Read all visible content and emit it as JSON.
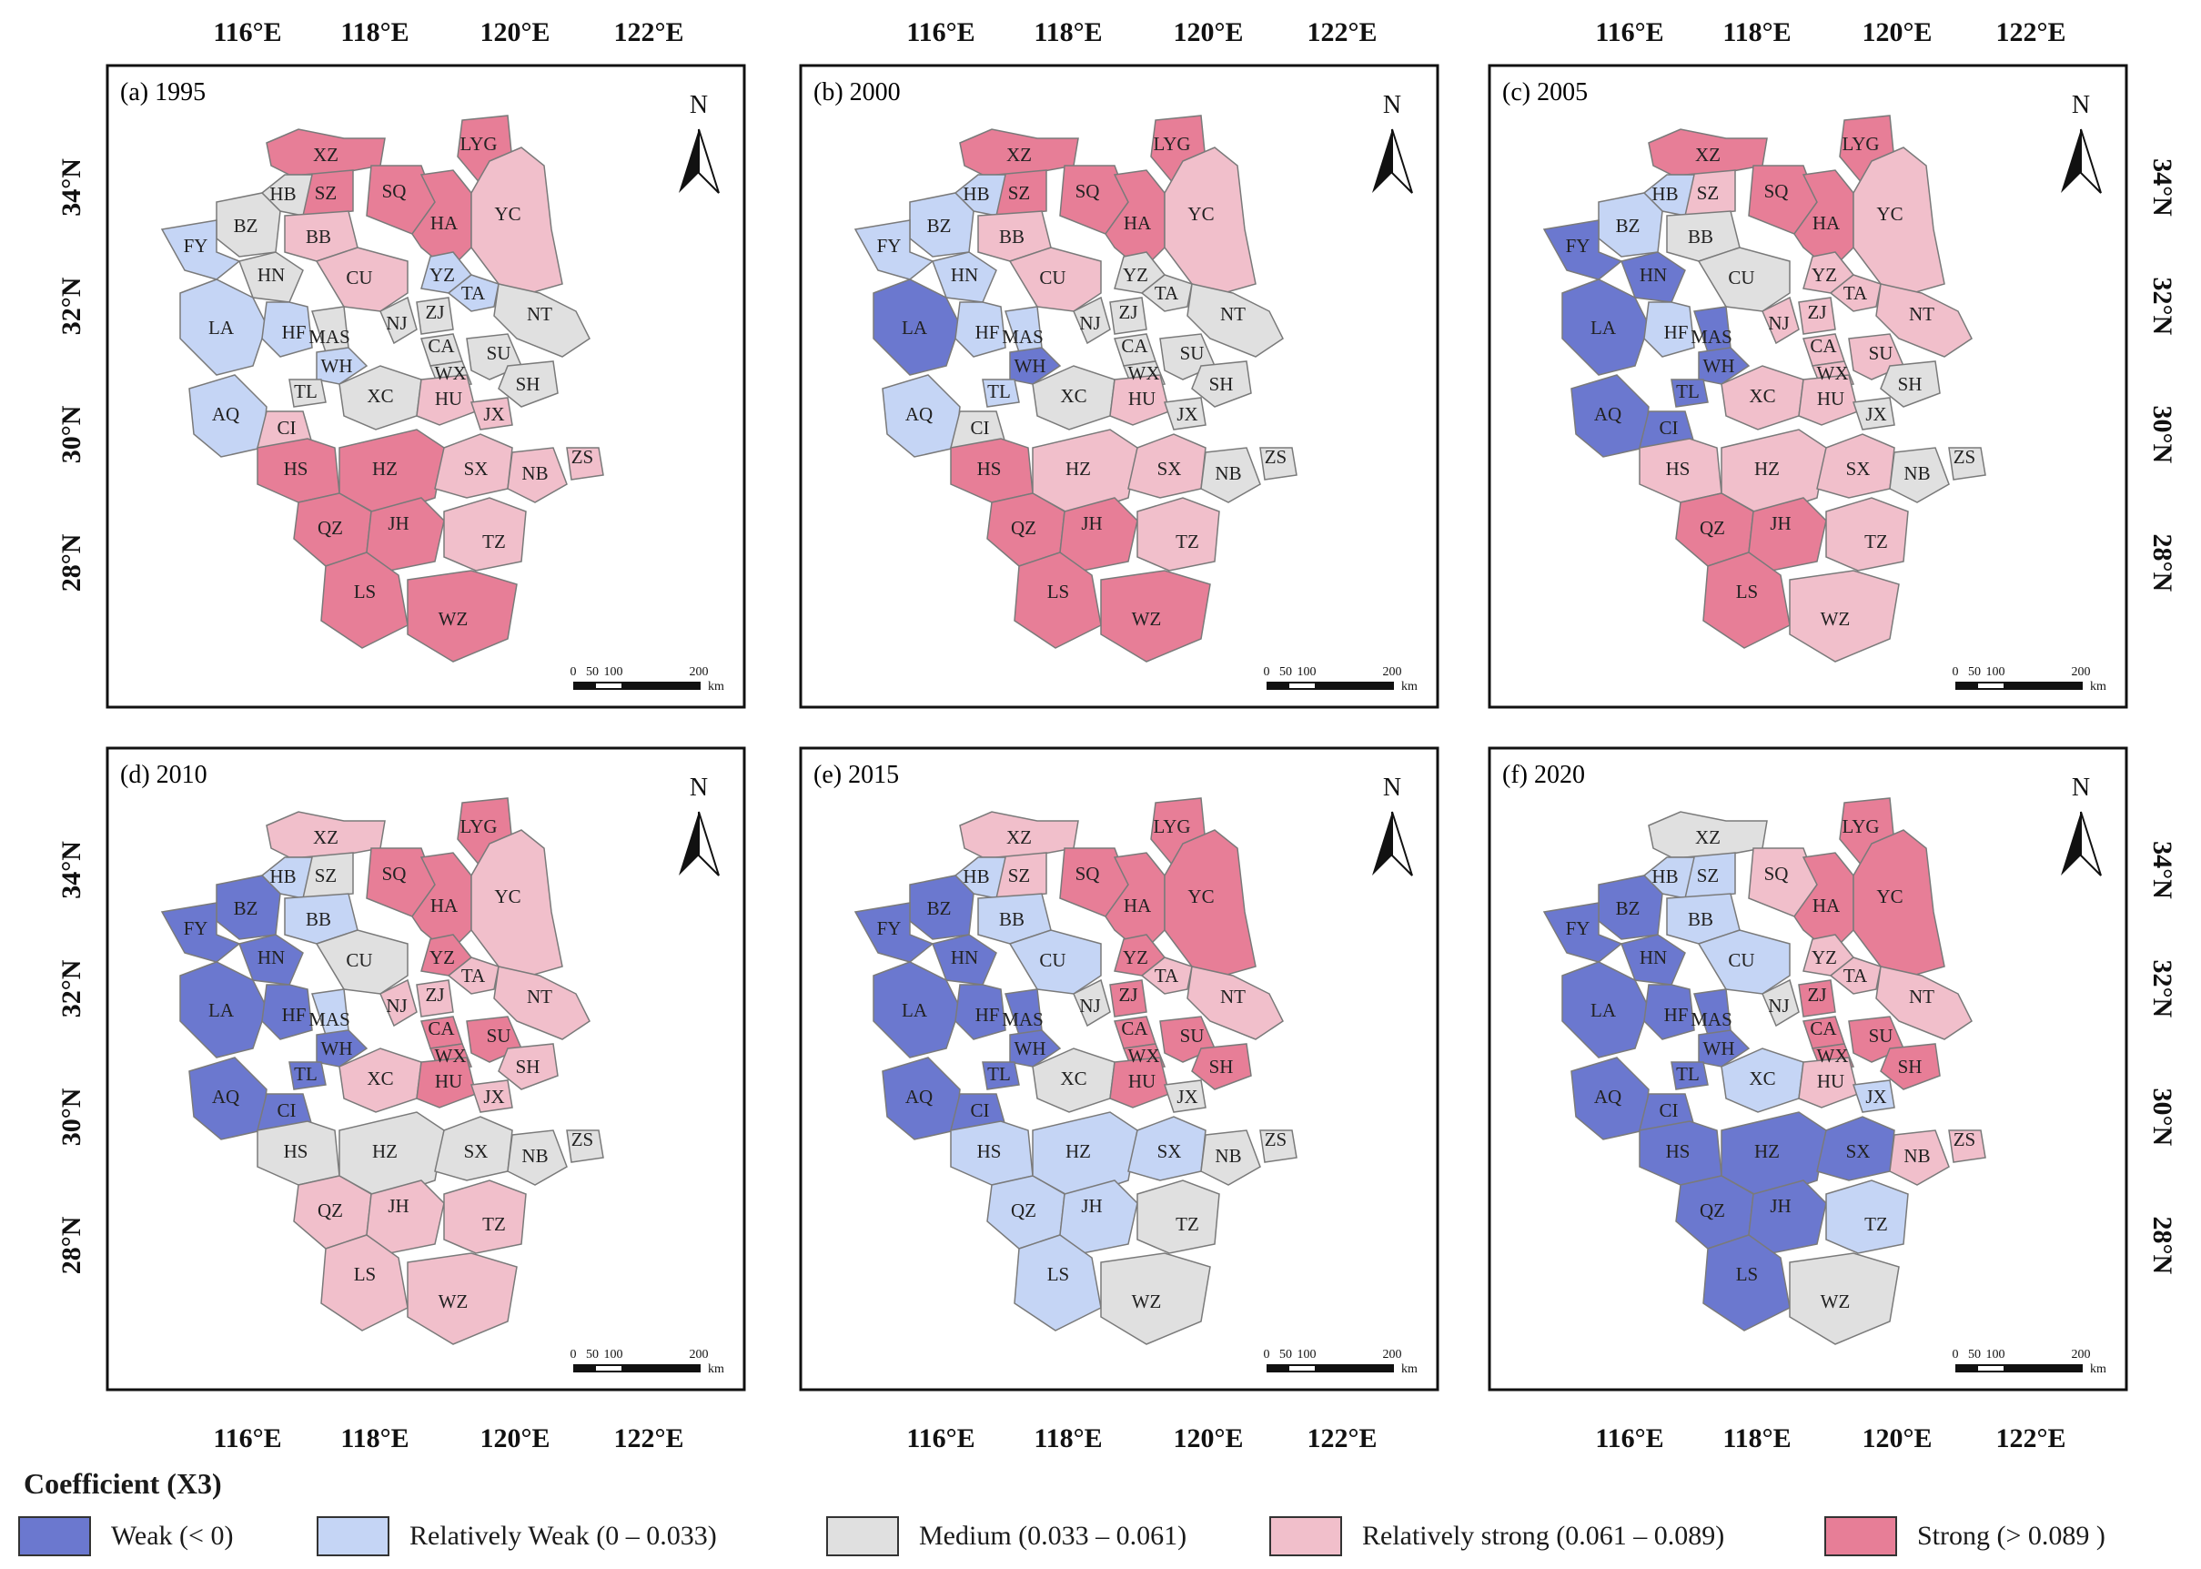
{
  "figure": {
    "legend_title": "Coefficient (X3)",
    "legend": [
      {
        "key": "W",
        "label": "Weak (< 0)",
        "color": "#6b78cf"
      },
      {
        "key": "RW",
        "label": "Relatively Weak (0 – 0.033)",
        "color": "#c5d5f5"
      },
      {
        "key": "M",
        "label": "Medium (0.033 – 0.061)",
        "color": "#e0e0e0"
      },
      {
        "key": "RS",
        "label": "Relatively strong (0.061 – 0.089)",
        "color": "#f1bfcb"
      },
      {
        "key": "S",
        "label": "Strong (> 0.089 )",
        "color": "#e77e97"
      }
    ],
    "lon_labels": [
      "116°E",
      "118°E",
      "120°E",
      "122°E"
    ],
    "lat_labels": [
      "34°N",
      "32°N",
      "30°N",
      "28°N"
    ],
    "scale_labels": [
      "0",
      "50",
      "100",
      "200"
    ],
    "scale_unit": "km",
    "north": "N",
    "regions": [
      "LYG",
      "XZ",
      "SZ",
      "SQ",
      "HB",
      "HA",
      "YC",
      "BZ",
      "BB",
      "FY",
      "CU",
      "YZ",
      "TA",
      "HN",
      "NT",
      "LA",
      "HF",
      "MAS",
      "NJ",
      "ZJ",
      "CA",
      "WX",
      "SU",
      "WH",
      "SH",
      "TL",
      "XC",
      "HU",
      "JX",
      "AQ",
      "CI",
      "HS",
      "HZ",
      "SX",
      "NB",
      "ZS",
      "QZ",
      "JH",
      "TZ",
      "LS",
      "WZ"
    ],
    "panels": [
      {
        "label": "(a) 1995",
        "classes": {
          "LYG": "S",
          "XZ": "S",
          "SZ": "S",
          "SQ": "S",
          "HB": "M",
          "HA": "S",
          "YC": "RS",
          "BZ": "M",
          "BB": "RS",
          "FY": "RW",
          "CU": "RS",
          "YZ": "RW",
          "TA": "RW",
          "HN": "M",
          "NT": "M",
          "LA": "RW",
          "HF": "RW",
          "MAS": "M",
          "NJ": "M",
          "ZJ": "M",
          "CA": "M",
          "WX": "M",
          "SU": "M",
          "WH": "RW",
          "SH": "M",
          "TL": "M",
          "XC": "M",
          "HU": "RS",
          "JX": "RS",
          "AQ": "RW",
          "CI": "RS",
          "HS": "S",
          "HZ": "S",
          "SX": "RS",
          "NB": "RS",
          "ZS": "RS",
          "QZ": "S",
          "JH": "S",
          "TZ": "RS",
          "LS": "S",
          "WZ": "S"
        }
      },
      {
        "label": "(b) 2000",
        "classes": {
          "LYG": "S",
          "XZ": "S",
          "SZ": "S",
          "SQ": "S",
          "HB": "RW",
          "HA": "S",
          "YC": "RS",
          "BZ": "RW",
          "BB": "RS",
          "FY": "RW",
          "CU": "RS",
          "YZ": "M",
          "TA": "M",
          "HN": "RW",
          "NT": "M",
          "LA": "W",
          "HF": "RW",
          "MAS": "RW",
          "NJ": "M",
          "ZJ": "M",
          "CA": "M",
          "WX": "M",
          "SU": "M",
          "WH": "W",
          "SH": "M",
          "TL": "RW",
          "XC": "M",
          "HU": "RS",
          "JX": "M",
          "AQ": "RW",
          "CI": "M",
          "HS": "S",
          "HZ": "RS",
          "SX": "RS",
          "NB": "M",
          "ZS": "M",
          "QZ": "S",
          "JH": "S",
          "TZ": "RS",
          "LS": "S",
          "WZ": "S"
        }
      },
      {
        "label": "(c) 2005",
        "classes": {
          "LYG": "S",
          "XZ": "S",
          "SZ": "RS",
          "SQ": "S",
          "HB": "RW",
          "HA": "S",
          "YC": "RS",
          "BZ": "RW",
          "BB": "M",
          "FY": "W",
          "CU": "M",
          "YZ": "RS",
          "TA": "RS",
          "HN": "W",
          "NT": "RS",
          "LA": "W",
          "HF": "RW",
          "MAS": "W",
          "NJ": "RS",
          "ZJ": "RS",
          "CA": "RS",
          "WX": "RS",
          "SU": "RS",
          "WH": "W",
          "SH": "M",
          "TL": "W",
          "XC": "RS",
          "HU": "RS",
          "JX": "M",
          "AQ": "W",
          "CI": "W",
          "HS": "RS",
          "HZ": "RS",
          "SX": "RS",
          "NB": "M",
          "ZS": "M",
          "QZ": "S",
          "JH": "S",
          "TZ": "RS",
          "LS": "S",
          "WZ": "RS"
        }
      },
      {
        "label": "(d) 2010",
        "classes": {
          "LYG": "S",
          "XZ": "RS",
          "SZ": "M",
          "SQ": "S",
          "HB": "RW",
          "HA": "S",
          "YC": "RS",
          "BZ": "W",
          "BB": "RW",
          "FY": "W",
          "CU": "M",
          "YZ": "S",
          "TA": "RS",
          "HN": "W",
          "NT": "RS",
          "LA": "W",
          "HF": "W",
          "MAS": "RW",
          "NJ": "RS",
          "ZJ": "RS",
          "CA": "S",
          "WX": "S",
          "SU": "S",
          "WH": "W",
          "SH": "RS",
          "TL": "W",
          "XC": "RS",
          "HU": "S",
          "JX": "RS",
          "AQ": "W",
          "CI": "W",
          "HS": "M",
          "HZ": "M",
          "SX": "M",
          "NB": "M",
          "ZS": "M",
          "QZ": "RS",
          "JH": "RS",
          "TZ": "RS",
          "LS": "RS",
          "WZ": "RS"
        }
      },
      {
        "label": "(e) 2015",
        "classes": {
          "LYG": "S",
          "XZ": "RS",
          "SZ": "RS",
          "SQ": "S",
          "HB": "RW",
          "HA": "S",
          "YC": "S",
          "BZ": "W",
          "BB": "RW",
          "FY": "W",
          "CU": "RW",
          "YZ": "S",
          "TA": "RS",
          "HN": "W",
          "NT": "RS",
          "LA": "W",
          "HF": "W",
          "MAS": "W",
          "NJ": "M",
          "ZJ": "S",
          "CA": "S",
          "WX": "S",
          "SU": "S",
          "WH": "W",
          "SH": "S",
          "TL": "W",
          "XC": "M",
          "HU": "S",
          "JX": "M",
          "AQ": "W",
          "CI": "W",
          "HS": "RW",
          "HZ": "RW",
          "SX": "RW",
          "NB": "M",
          "ZS": "M",
          "QZ": "RW",
          "JH": "RW",
          "TZ": "M",
          "LS": "RW",
          "WZ": "M"
        }
      },
      {
        "label": "(f) 2020",
        "classes": {
          "LYG": "S",
          "XZ": "M",
          "SZ": "RW",
          "SQ": "RS",
          "HB": "RW",
          "HA": "S",
          "YC": "S",
          "BZ": "W",
          "BB": "RW",
          "FY": "W",
          "CU": "RW",
          "YZ": "RS",
          "TA": "RS",
          "HN": "W",
          "NT": "RS",
          "LA": "W",
          "HF": "W",
          "MAS": "W",
          "NJ": "M",
          "ZJ": "S",
          "CA": "S",
          "WX": "S",
          "SU": "S",
          "WH": "W",
          "SH": "S",
          "TL": "W",
          "XC": "RW",
          "HU": "RS",
          "JX": "RW",
          "AQ": "W",
          "CI": "W",
          "HS": "W",
          "HZ": "W",
          "SX": "W",
          "NB": "RS",
          "ZS": "RS",
          "QZ": "W",
          "JH": "W",
          "TZ": "RW",
          "LS": "W",
          "WZ": "M"
        }
      }
    ]
  }
}
